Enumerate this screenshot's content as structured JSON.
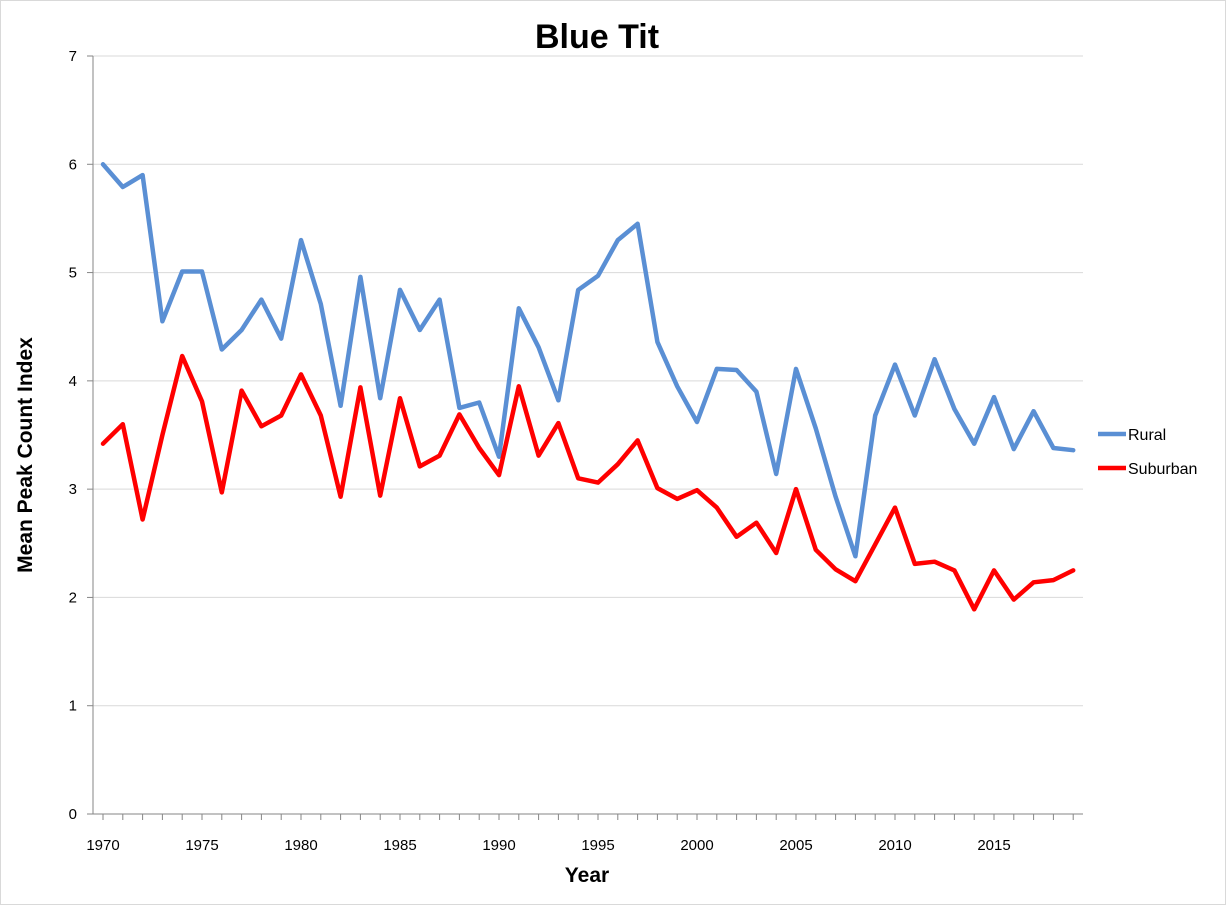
{
  "chart_data": {
    "type": "line",
    "title": "Blue Tit",
    "xlabel": "Year",
    "ylabel": "Mean Peak Count Index",
    "xlim": [
      1970,
      2019
    ],
    "ylim": [
      0,
      7
    ],
    "x_ticks": [
      1970,
      1975,
      1980,
      1985,
      1990,
      1995,
      2000,
      2005,
      2010,
      2015
    ],
    "y_ticks": [
      0,
      1,
      2,
      3,
      4,
      5,
      6,
      7
    ],
    "grid": "horizontal",
    "legend_position": "right",
    "x": [
      1970,
      1971,
      1972,
      1973,
      1974,
      1975,
      1976,
      1977,
      1978,
      1979,
      1980,
      1981,
      1982,
      1983,
      1984,
      1985,
      1986,
      1987,
      1988,
      1989,
      1990,
      1991,
      1992,
      1993,
      1994,
      1995,
      1996,
      1997,
      1998,
      1999,
      2000,
      2001,
      2002,
      2003,
      2004,
      2005,
      2006,
      2007,
      2008,
      2009,
      2010,
      2011,
      2012,
      2013,
      2014,
      2015,
      2016,
      2017,
      2018,
      2019
    ],
    "series": [
      {
        "name": "Rural",
        "color": "#5a8fd4",
        "values": [
          6.0,
          5.79,
          5.9,
          4.55,
          5.01,
          5.01,
          4.29,
          4.47,
          4.75,
          4.39,
          5.3,
          4.71,
          3.77,
          4.96,
          3.84,
          4.84,
          4.47,
          4.75,
          3.75,
          3.8,
          3.3,
          4.67,
          4.31,
          3.82,
          4.84,
          4.97,
          5.3,
          5.45,
          4.36,
          3.95,
          3.62,
          4.11,
          4.1,
          3.9,
          3.14,
          4.11,
          3.56,
          2.93,
          2.38,
          3.68,
          4.15,
          3.68,
          4.2,
          3.74,
          3.42,
          3.85,
          3.37,
          3.72,
          3.38,
          3.36
        ]
      },
      {
        "name": "Suburban",
        "color": "#ff0000",
        "values": [
          3.42,
          3.6,
          2.72,
          3.5,
          4.23,
          3.81,
          2.97,
          3.91,
          3.58,
          3.68,
          4.06,
          3.68,
          2.93,
          3.94,
          2.94,
          3.84,
          3.21,
          3.31,
          3.69,
          3.38,
          3.13,
          3.95,
          3.31,
          3.61,
          3.1,
          3.06,
          3.23,
          3.45,
          3.01,
          2.91,
          2.99,
          2.83,
          2.56,
          2.69,
          2.41,
          3.0,
          2.44,
          2.26,
          2.15,
          2.49,
          2.83,
          2.31,
          2.33,
          2.25,
          1.89,
          2.25,
          1.98,
          2.14,
          2.16,
          2.25
        ]
      }
    ]
  }
}
